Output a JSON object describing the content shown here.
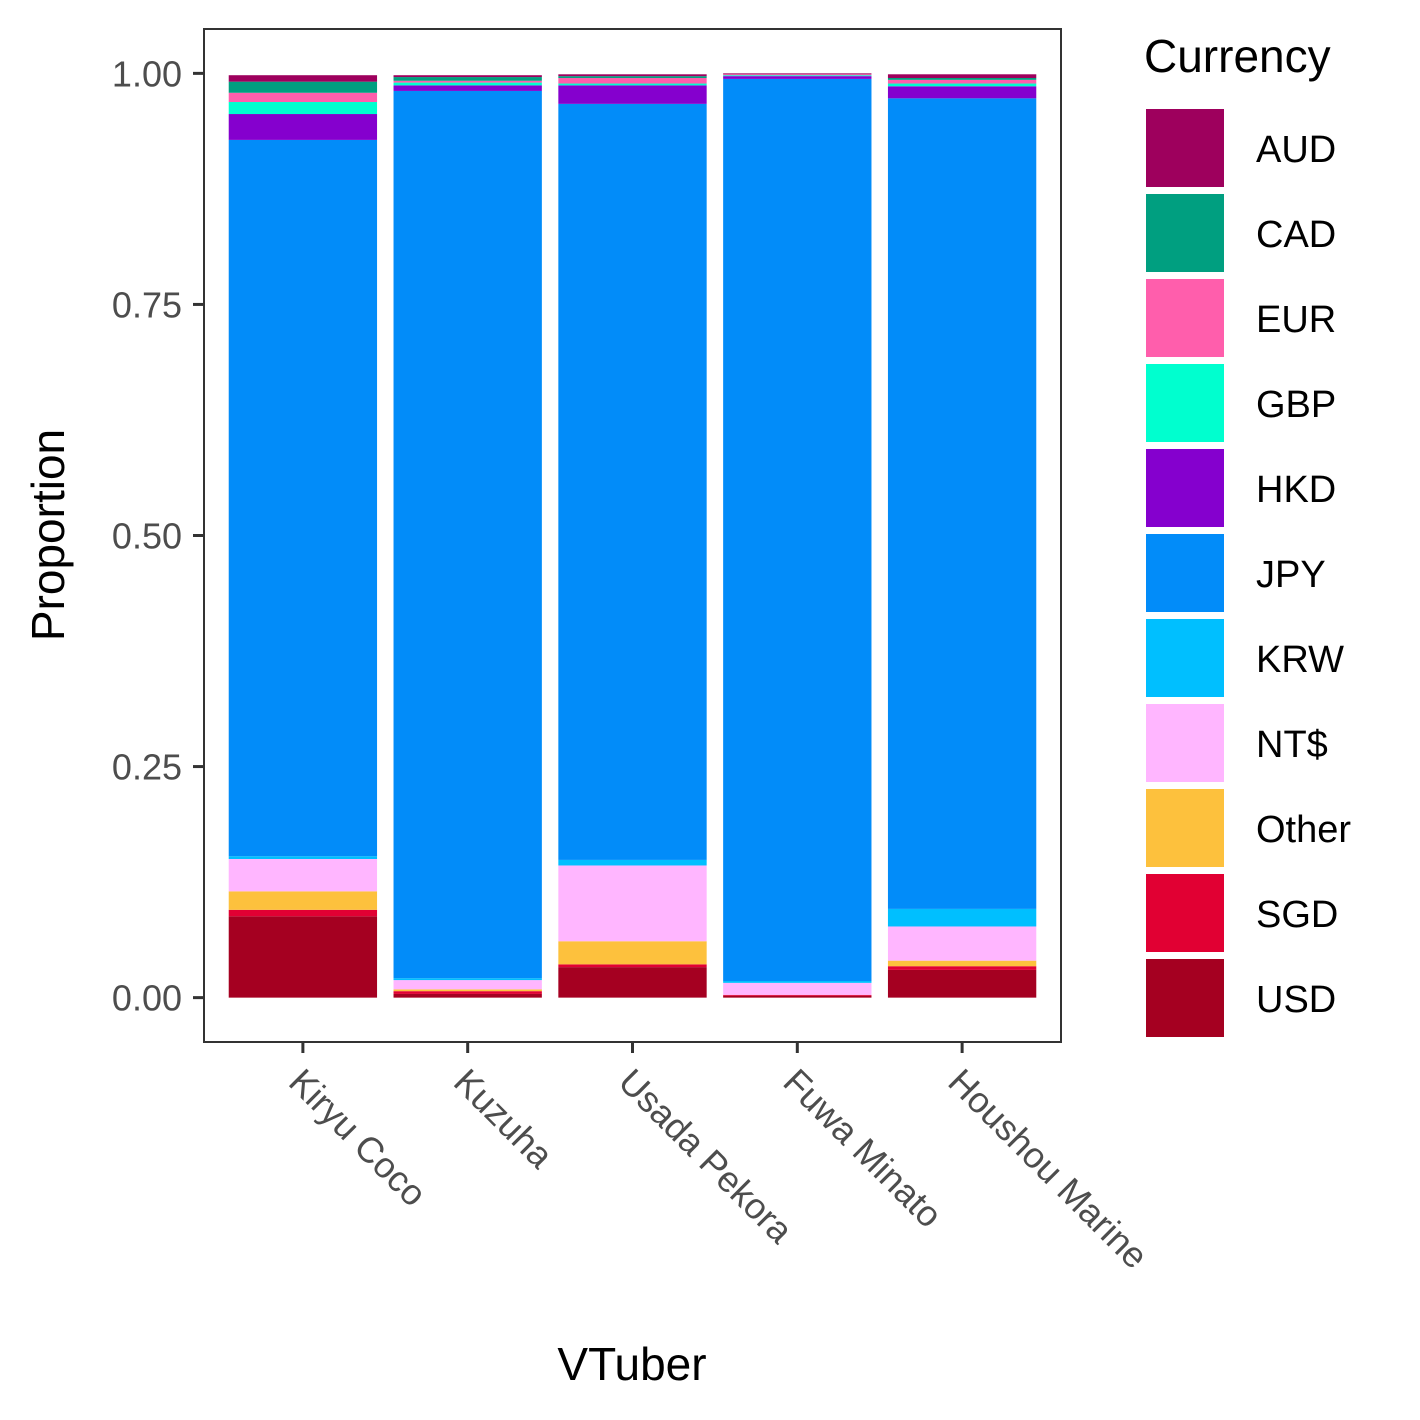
{
  "chart_data": {
    "type": "bar",
    "stacked": true,
    "title": "",
    "xlabel": "VTuber",
    "ylabel": "Proportion",
    "ylim": [
      -0.048,
      1.048
    ],
    "yticks": [
      0.0,
      0.25,
      0.5,
      0.75,
      1.0
    ],
    "ytick_labels": [
      "0.00",
      "0.25",
      "0.50",
      "0.75",
      "1.00"
    ],
    "grid": false,
    "legend_title": "Currency",
    "legend_position": "right",
    "categories": [
      "Kiryu Coco",
      "Kuzuha",
      "Usada Pekora",
      "Fuwa Minato",
      "Houshou Marine"
    ],
    "series": [
      {
        "name": "USD",
        "color": "#A50021",
        "values": [
          0.088,
          0.004,
          0.033,
          0.002,
          0.03
        ]
      },
      {
        "name": "SGD",
        "color": "#E10033",
        "values": [
          0.007,
          0.003,
          0.003,
          0.001,
          0.004
        ]
      },
      {
        "name": "Other",
        "color": "#FDC13D",
        "values": [
          0.02,
          0.002,
          0.025,
          0.0,
          0.006
        ]
      },
      {
        "name": "NT$",
        "color": "#FFB6FF",
        "values": [
          0.035,
          0.01,
          0.082,
          0.013,
          0.037
        ]
      },
      {
        "name": "KRW",
        "color": "#00BFFF",
        "values": [
          0.003,
          0.002,
          0.006,
          0.002,
          0.019
        ]
      },
      {
        "name": "JPY",
        "color": "#028CF9",
        "values": [
          0.775,
          0.96,
          0.818,
          0.976,
          0.877
        ]
      },
      {
        "name": "HKD",
        "color": "#8500CE",
        "values": [
          0.028,
          0.006,
          0.02,
          0.003,
          0.013
        ]
      },
      {
        "name": "GBP",
        "color": "#00FFCF",
        "values": [
          0.013,
          0.003,
          0.002,
          0.001,
          0.003
        ]
      },
      {
        "name": "EUR",
        "color": "#FF5EAC",
        "values": [
          0.01,
          0.002,
          0.006,
          0.001,
          0.004
        ]
      },
      {
        "name": "CAD",
        "color": "#009F80",
        "values": [
          0.012,
          0.004,
          0.002,
          0.0,
          0.002
        ]
      },
      {
        "name": "AUD",
        "color": "#9E005D",
        "values": [
          0.007,
          0.002,
          0.002,
          0.001,
          0.004
        ]
      }
    ],
    "legend_order": [
      "AUD",
      "CAD",
      "EUR",
      "GBP",
      "HKD",
      "JPY",
      "KRW",
      "NT$",
      "Other",
      "SGD",
      "USD"
    ]
  }
}
